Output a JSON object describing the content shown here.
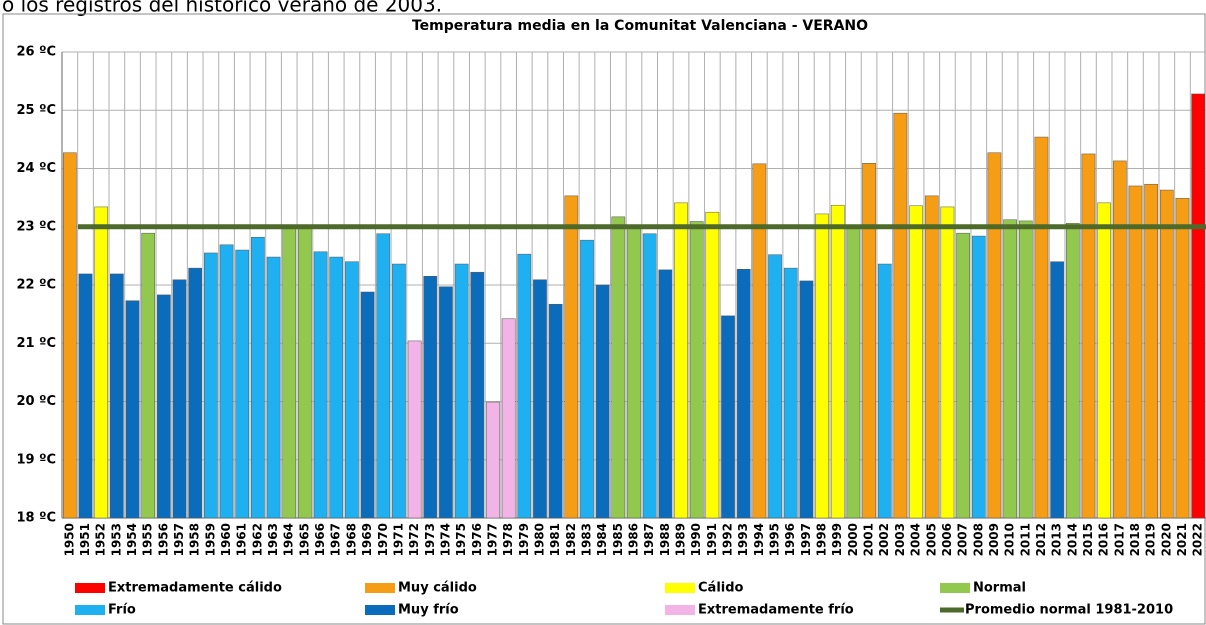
{
  "header_text": "o los registros del histórico verano de 2003.",
  "chart_data": {
    "type": "bar",
    "title": "Temperatura media en la Comunitat Valenciana  - VERANO",
    "categories": [
      "1950",
      "1951",
      "1952",
      "1953",
      "1954",
      "1955",
      "1956",
      "1957",
      "1958",
      "1959",
      "1960",
      "1961",
      "1962",
      "1963",
      "1964",
      "1965",
      "1966",
      "1967",
      "1968",
      "1969",
      "1970",
      "1971",
      "1972",
      "1973",
      "1974",
      "1975",
      "1976",
      "1977",
      "1978",
      "1979",
      "1980",
      "1981",
      "1982",
      "1983",
      "1984",
      "1985",
      "1986",
      "1987",
      "1988",
      "1989",
      "1990",
      "1991",
      "1992",
      "1993",
      "1994",
      "1995",
      "1996",
      "1997",
      "1998",
      "1999",
      "2000",
      "2001",
      "2002",
      "2003",
      "2004",
      "2005",
      "2006",
      "2007",
      "2008",
      "2009",
      "2010",
      "2011",
      "2012",
      "2013",
      "2014",
      "2015",
      "2016",
      "2017",
      "2018",
      "2019",
      "2020",
      "2021",
      "2022"
    ],
    "values": [
      24.27,
      22.19,
      23.34,
      22.19,
      21.73,
      22.89,
      21.83,
      22.09,
      22.29,
      22.55,
      22.69,
      22.6,
      22.82,
      22.48,
      23.01,
      23.01,
      22.57,
      22.48,
      22.4,
      21.88,
      22.88,
      22.36,
      21.04,
      22.15,
      21.97,
      22.36,
      22.22,
      19.99,
      21.42,
      22.53,
      22.09,
      21.67,
      23.53,
      22.77,
      22.0,
      23.17,
      23.01,
      22.88,
      22.26,
      23.41,
      23.09,
      23.25,
      21.47,
      22.27,
      24.08,
      22.52,
      22.29,
      22.07,
      23.22,
      23.37,
      23.01,
      24.09,
      22.36,
      24.95,
      23.36,
      23.53,
      23.34,
      22.89,
      22.84,
      24.27,
      23.12,
      23.1,
      24.54,
      22.4,
      23.06,
      24.25,
      23.41,
      24.13,
      23.7,
      23.73,
      23.63,
      23.49,
      25.28
    ],
    "colors": [
      "#f59d14",
      "#0b6cbc",
      "#ffff00",
      "#0b6cbc",
      "#0b6cbc",
      "#92c84e",
      "#0b6cbc",
      "#0b6cbc",
      "#0b6cbc",
      "#1eb0f0",
      "#1eb0f0",
      "#1eb0f0",
      "#1eb0f0",
      "#1eb0f0",
      "#92c84e",
      "#92c84e",
      "#1eb0f0",
      "#1eb0f0",
      "#1eb0f0",
      "#0b6cbc",
      "#1eb0f0",
      "#1eb0f0",
      "#f2b3e6",
      "#0b6cbc",
      "#0b6cbc",
      "#1eb0f0",
      "#0b6cbc",
      "#f2b3e6",
      "#f2b3e6",
      "#1eb0f0",
      "#0b6cbc",
      "#0b6cbc",
      "#f59d14",
      "#1eb0f0",
      "#0b6cbc",
      "#92c84e",
      "#92c84e",
      "#1eb0f0",
      "#0b6cbc",
      "#ffff00",
      "#92c84e",
      "#ffff00",
      "#0b6cbc",
      "#0b6cbc",
      "#f59d14",
      "#1eb0f0",
      "#1eb0f0",
      "#0b6cbc",
      "#ffff00",
      "#ffff00",
      "#92c84e",
      "#f59d14",
      "#1eb0f0",
      "#f59d14",
      "#ffff00",
      "#f59d14",
      "#ffff00",
      "#92c84e",
      "#1eb0f0",
      "#f59d14",
      "#92c84e",
      "#92c84e",
      "#f59d14",
      "#0b6cbc",
      "#92c84e",
      "#f59d14",
      "#ffff00",
      "#f59d14",
      "#f59d14",
      "#f59d14",
      "#f59d14",
      "#f59d14",
      "#ff0000"
    ],
    "ylim": [
      18,
      26
    ],
    "yticks": [
      {
        "value": 18,
        "label": "18 ºC"
      },
      {
        "value": 19,
        "label": "19 ºC"
      },
      {
        "value": 20,
        "label": "20 ºC"
      },
      {
        "value": 21,
        "label": "21 ºC"
      },
      {
        "value": 22,
        "label": "22 ºC"
      },
      {
        "value": 23,
        "label": "23 ºC"
      },
      {
        "value": 24,
        "label": "24 ºC"
      },
      {
        "value": 25,
        "label": "25 ºC"
      },
      {
        "value": 26,
        "label": "26 ºC"
      }
    ],
    "grid": true,
    "legend": [
      {
        "name": "Extremadamente cálido",
        "color": "#ff0000"
      },
      {
        "name": "Muy cálido",
        "color": "#f59d14"
      },
      {
        "name": "Cálido",
        "color": "#ffff00"
      },
      {
        "name": "Normal",
        "color": "#92c84e"
      },
      {
        "name": "Frío",
        "color": "#1eb0f0"
      },
      {
        "name": "Muy frío",
        "color": "#0b6cbc"
      },
      {
        "name": "Extremadamente frío",
        "color": "#f2b3e6"
      }
    ],
    "reference_line": {
      "name": "Promedio normal 1981-2010",
      "value": 23.0,
      "color": "#4e6a2a"
    }
  }
}
